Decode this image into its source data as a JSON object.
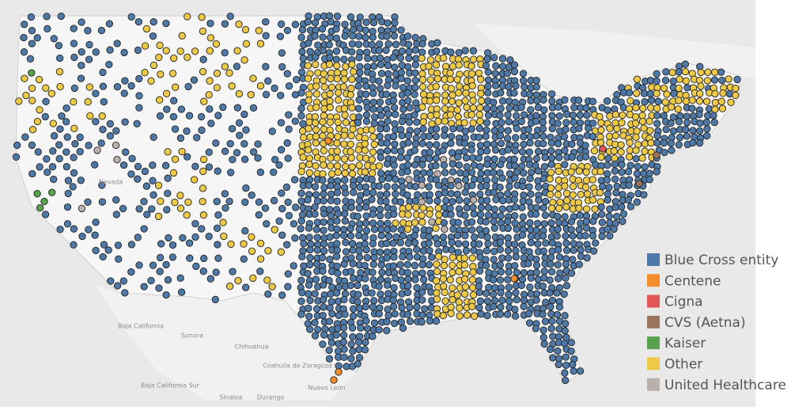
{
  "legend": {
    "items": [
      {
        "label": "Blue Cross entity",
        "color": "#4e79a7"
      },
      {
        "label": "Centene",
        "color": "#f28e2b"
      },
      {
        "label": "Cigna",
        "color": "#e15759"
      },
      {
        "label": "CVS (Aetna)",
        "color": "#9c755f"
      },
      {
        "label": "Kaiser",
        "color": "#59a14f"
      },
      {
        "label": "Other",
        "color": "#edc948"
      },
      {
        "label": "United Healthcare",
        "color": "#bab0ac"
      }
    ]
  },
  "map_labels": [
    "Nevada",
    "Baja California",
    "Sonora",
    "Chihuahua",
    "Coahuila de Zaragoza",
    "Nuevo León",
    "Baja California Sur",
    "Sinaloa",
    "Durango"
  ]
}
